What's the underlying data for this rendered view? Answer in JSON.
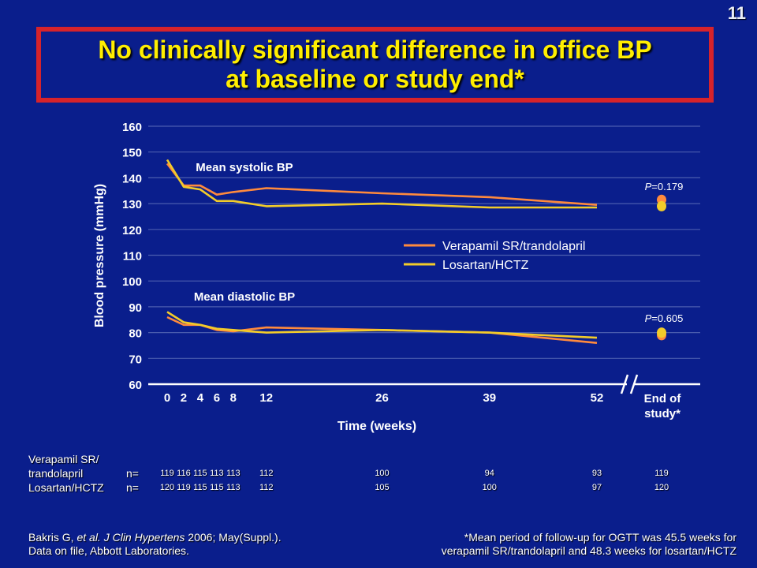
{
  "slide_number": "11",
  "title": {
    "line1": "No clinically significant difference in office BP",
    "line2": "at baseline or study end*"
  },
  "colors": {
    "background": "#0a1e8c",
    "title_text": "#ffee00",
    "title_border": "#d6232b",
    "verapamil": "#ff8a3d",
    "losartan": "#f2cc2a"
  },
  "chart_data": {
    "type": "line",
    "ylabel": "Blood pressure (mmHg)",
    "xlabel": "Time (weeks)",
    "ylim": [
      60,
      160
    ],
    "yticks": [
      60,
      70,
      80,
      90,
      100,
      110,
      120,
      130,
      140,
      150,
      160
    ],
    "grid": true,
    "x": [
      0,
      2,
      4,
      6,
      8,
      12,
      26,
      39,
      52
    ],
    "xtick_labels": [
      "0",
      "2",
      "4",
      "6",
      "8",
      "12",
      "26",
      "39",
      "52"
    ],
    "end_label": "End of study*",
    "annotations": {
      "systolic_label": "Mean systolic BP",
      "diastolic_label": "Mean diastolic BP",
      "p_systolic_prefix": "P",
      "p_systolic_value": "=0.179",
      "p_diastolic_prefix": "P",
      "p_diastolic_value": "=0.605"
    },
    "legend": {
      "placement": "center",
      "entries": [
        "Verapamil SR/trandolapril",
        "Losartan/HCTZ"
      ]
    },
    "series": [
      {
        "name": "Verapamil SR/trandolapril",
        "measure": "systolic",
        "values": [
          145.5,
          137,
          137,
          133.5,
          134.5,
          136,
          134,
          132.5,
          129.5
        ],
        "end": 131.5
      },
      {
        "name": "Losartan/HCTZ",
        "measure": "systolic",
        "values": [
          147,
          136.5,
          135.5,
          131,
          131,
          129,
          130,
          128.5,
          128.5
        ],
        "end": 129
      },
      {
        "name": "Verapamil SR/trandolapril",
        "measure": "diastolic",
        "values": [
          86,
          83,
          83,
          81,
          80.5,
          82,
          81,
          80,
          76
        ],
        "end": 79
      },
      {
        "name": "Losartan/HCTZ",
        "measure": "diastolic",
        "values": [
          88,
          84,
          83,
          81.5,
          81,
          80,
          81,
          80,
          78
        ],
        "end": 80
      }
    ]
  },
  "n_table": {
    "row1_label_line1": "Verapamil SR/",
    "row1_label_line2": "trandolapril",
    "row2_label": "Losartan/HCTZ",
    "n_label": "n=",
    "verapamil_n": [
      "119",
      "116",
      "115",
      "113",
      "113",
      "112",
      "100",
      "94",
      "93",
      "119"
    ],
    "losartan_n": [
      "120",
      "119",
      "115",
      "115",
      "113",
      "112",
      "105",
      "100",
      "97",
      "120"
    ]
  },
  "footer": {
    "left_line1_a": "Bakris G, ",
    "left_line1_b": "et al. J Clin Hypertens",
    "left_line1_c": " 2006; May(Suppl.).",
    "left_line2": "Data on file, Abbott Laboratories.",
    "right_line1": "*Mean period of follow-up for OGTT was 45.5 weeks for",
    "right_line2": "verapamil SR/trandolapril and 48.3 weeks for losartan/HCTZ"
  }
}
